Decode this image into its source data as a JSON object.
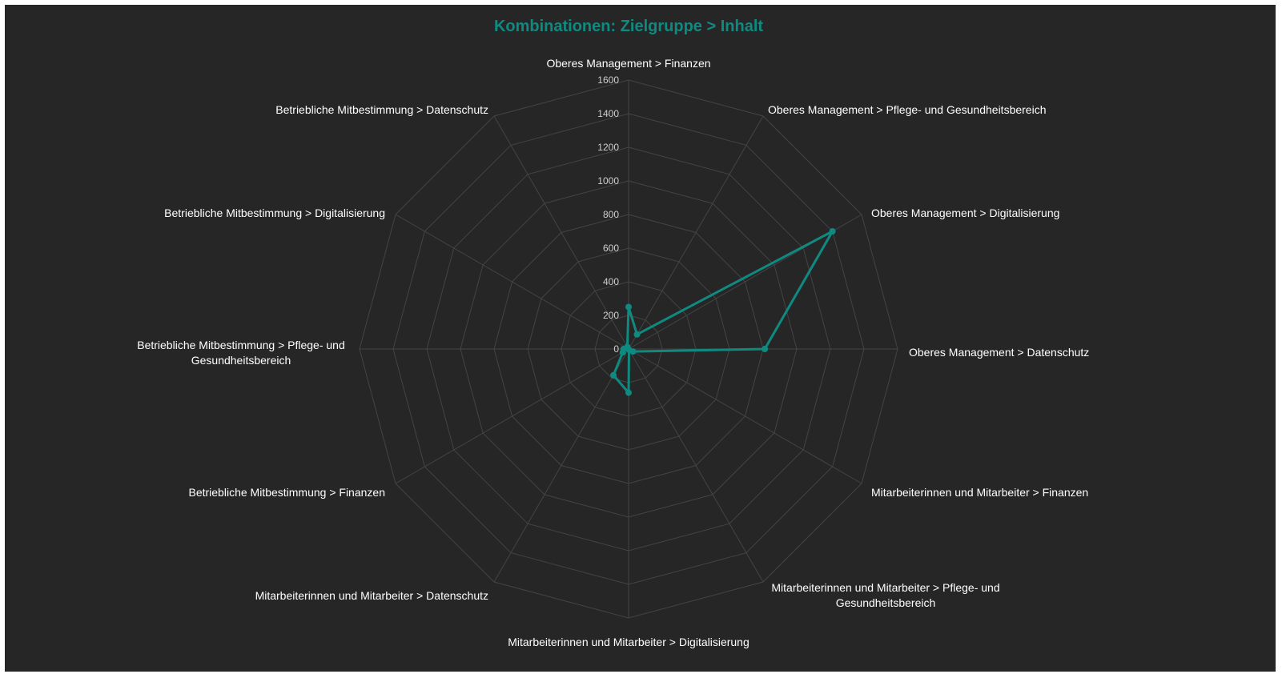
{
  "chart_data": {
    "type": "radar",
    "title": "Kombinationen: Zielgruppe > Inhalt",
    "categories": [
      "Oberes Management > Finanzen",
      "Oberes Management > Pflege- und Gesundheitsbereich",
      "Oberes Management > Digitalisierung",
      "Oberes Management > Datenschutz",
      "Mitarbeiterinnen und Mitarbeiter > Finanzen",
      "Mitarbeiterinnen und Mitarbeiter > Pflege- und Gesundheitsbereich",
      "Mitarbeiterinnen und Mitarbeiter > Digitalisierung",
      "Mitarbeiterinnen und Mitarbeiter > Datenschutz",
      "Betriebliche Mitbestimmung > Finanzen",
      "Betriebliche Mitbestimmung > Pflege- und Gesundheitsbereich",
      "Betriebliche Mitbestimmung > Digitalisierung",
      "Betriebliche Mitbestimmung > Datenschutz"
    ],
    "values": [
      250,
      100,
      1400,
      810,
      30,
      5,
      260,
      180,
      40,
      30,
      10,
      15
    ],
    "rlim": [
      0,
      1600
    ],
    "ticks": [
      "0",
      "200",
      "400",
      "600",
      "800",
      "1000",
      "1200",
      "1400",
      "1600"
    ],
    "grid": true,
    "legend": "none",
    "colors": {
      "series": "#0f8a80",
      "background": "#262626",
      "grid": "#444444",
      "title": "#0f8a80"
    }
  }
}
